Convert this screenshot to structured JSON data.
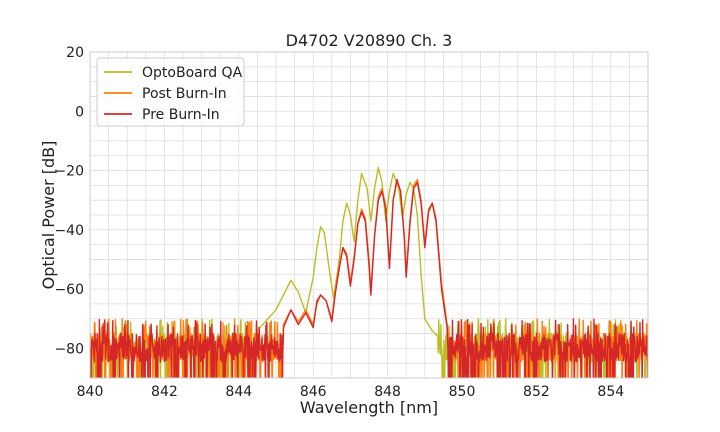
{
  "chart_data": {
    "type": "line",
    "title": "D4702 V20890 Ch. 3",
    "xlabel": "Wavelength [nm]",
    "ylabel": "Optical Power [dB]",
    "xlim": [
      840,
      855
    ],
    "ylim": [
      -90,
      20
    ],
    "xticks": [
      "840",
      "842",
      "844",
      "846",
      "848",
      "850",
      "852",
      "854"
    ],
    "yticks": [
      "20",
      "0",
      "−20",
      "−40",
      "−60",
      "−80"
    ],
    "grid": true,
    "legend_position": "top-left",
    "noise_floor_db": -80,
    "series": [
      {
        "name": "OptoBoard QA",
        "color": "#bcbd22",
        "points": [
          [
            844.5,
            -74
          ],
          [
            845.0,
            -67
          ],
          [
            845.2,
            -62
          ],
          [
            845.4,
            -57
          ],
          [
            845.6,
            -61
          ],
          [
            845.8,
            -68
          ],
          [
            846.0,
            -56
          ],
          [
            846.1,
            -46
          ],
          [
            846.2,
            -39
          ],
          [
            846.3,
            -41
          ],
          [
            846.45,
            -55
          ],
          [
            846.55,
            -63
          ],
          [
            846.7,
            -50
          ],
          [
            846.8,
            -37
          ],
          [
            846.9,
            -31
          ],
          [
            847.0,
            -35
          ],
          [
            847.1,
            -44
          ],
          [
            847.2,
            -30
          ],
          [
            847.3,
            -21
          ],
          [
            847.45,
            -26
          ],
          [
            847.55,
            -37
          ],
          [
            847.65,
            -26
          ],
          [
            847.75,
            -19
          ],
          [
            847.85,
            -24
          ],
          [
            847.95,
            -37
          ],
          [
            848.05,
            -27
          ],
          [
            848.15,
            -21
          ],
          [
            848.3,
            -26
          ],
          [
            848.4,
            -36
          ],
          [
            848.5,
            -28
          ],
          [
            848.6,
            -24
          ],
          [
            848.7,
            -26
          ],
          [
            848.8,
            -35
          ],
          [
            848.9,
            -55
          ],
          [
            849.0,
            -70
          ],
          [
            849.2,
            -74
          ],
          [
            849.35,
            -76
          ]
        ]
      },
      {
        "name": "Post Burn-In",
        "color": "#ff7f0e",
        "points": [
          [
            845.2,
            -72
          ],
          [
            845.4,
            -67
          ],
          [
            845.6,
            -71
          ],
          [
            845.8,
            -67
          ],
          [
            846.0,
            -72
          ],
          [
            846.1,
            -65
          ],
          [
            846.2,
            -62
          ],
          [
            846.35,
            -64
          ],
          [
            846.5,
            -70
          ],
          [
            846.6,
            -60
          ],
          [
            846.7,
            -52
          ],
          [
            846.8,
            -46
          ],
          [
            846.9,
            -48
          ],
          [
            847.0,
            -58
          ],
          [
            847.1,
            -49
          ],
          [
            847.2,
            -38
          ],
          [
            847.3,
            -33
          ],
          [
            847.4,
            -36
          ],
          [
            847.5,
            -50
          ],
          [
            847.55,
            -60
          ],
          [
            847.65,
            -42
          ],
          [
            847.75,
            -29
          ],
          [
            847.85,
            -26
          ],
          [
            847.95,
            -32
          ],
          [
            848.05,
            -52
          ],
          [
            848.15,
            -30
          ],
          [
            848.25,
            -24
          ],
          [
            848.35,
            -27
          ],
          [
            848.45,
            -42
          ],
          [
            848.5,
            -55
          ],
          [
            848.6,
            -37
          ],
          [
            848.7,
            -25
          ],
          [
            848.8,
            -23
          ],
          [
            848.9,
            -30
          ],
          [
            849.0,
            -45
          ],
          [
            849.1,
            -33
          ],
          [
            849.2,
            -31
          ],
          [
            849.3,
            -36
          ],
          [
            849.45,
            -58
          ],
          [
            849.6,
            -72
          ]
        ]
      },
      {
        "name": "Pre Burn-In",
        "color": "#d62728",
        "points": [
          [
            845.2,
            -73
          ],
          [
            845.4,
            -67
          ],
          [
            845.6,
            -72
          ],
          [
            845.8,
            -68
          ],
          [
            846.0,
            -73
          ],
          [
            846.1,
            -64
          ],
          [
            846.2,
            -62
          ],
          [
            846.35,
            -64
          ],
          [
            846.5,
            -71
          ],
          [
            846.6,
            -61
          ],
          [
            846.7,
            -53
          ],
          [
            846.8,
            -46
          ],
          [
            846.9,
            -49
          ],
          [
            847.0,
            -59
          ],
          [
            847.1,
            -50
          ],
          [
            847.2,
            -38
          ],
          [
            847.3,
            -34
          ],
          [
            847.4,
            -37
          ],
          [
            847.5,
            -52
          ],
          [
            847.55,
            -62
          ],
          [
            847.65,
            -42
          ],
          [
            847.75,
            -30
          ],
          [
            847.85,
            -27
          ],
          [
            847.95,
            -33
          ],
          [
            848.05,
            -53
          ],
          [
            848.15,
            -30
          ],
          [
            848.25,
            -23
          ],
          [
            848.35,
            -27
          ],
          [
            848.45,
            -43
          ],
          [
            848.5,
            -56
          ],
          [
            848.6,
            -38
          ],
          [
            848.7,
            -26
          ],
          [
            848.8,
            -24
          ],
          [
            848.9,
            -31
          ],
          [
            849.0,
            -46
          ],
          [
            849.1,
            -34
          ],
          [
            849.2,
            -31
          ],
          [
            849.3,
            -37
          ],
          [
            849.45,
            -60
          ],
          [
            849.6,
            -73
          ]
        ]
      }
    ]
  }
}
